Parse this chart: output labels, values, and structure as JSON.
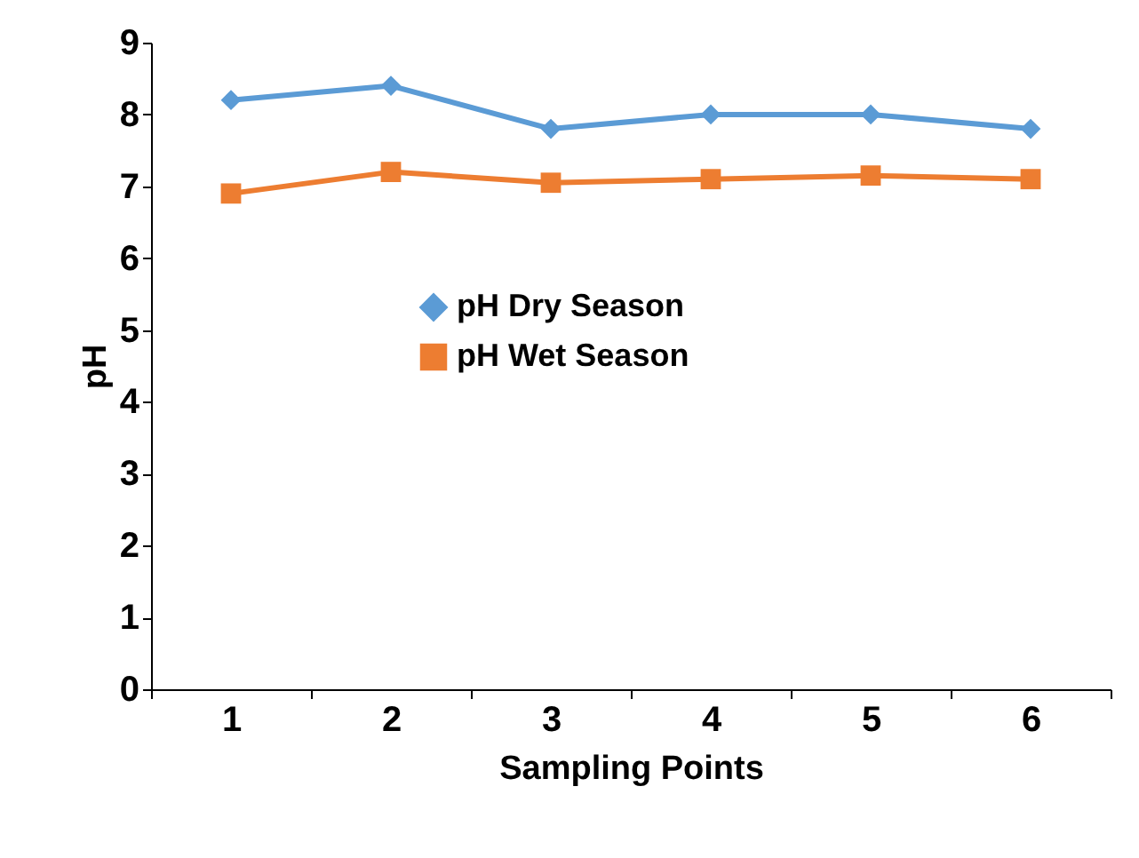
{
  "chart_data": {
    "type": "line",
    "xlabel": "Sampling Points",
    "ylabel": "pH",
    "categories": [
      "1",
      "2",
      "3",
      "4",
      "5",
      "6"
    ],
    "series": [
      {
        "name": "pH Dry Season",
        "color": "#5b9bd5",
        "marker": "diamond",
        "values": [
          8.2,
          8.4,
          7.8,
          8.0,
          8.0,
          7.8
        ]
      },
      {
        "name": "pH Wet Season",
        "color": "#ed7d31",
        "marker": "square",
        "values": [
          6.9,
          7.2,
          7.05,
          7.1,
          7.15,
          7.1
        ]
      }
    ],
    "ylim": [
      0,
      9
    ],
    "yticks": [
      0,
      1,
      2,
      3,
      4,
      5,
      6,
      7,
      8,
      9
    ],
    "grid": false,
    "legend": "center"
  }
}
